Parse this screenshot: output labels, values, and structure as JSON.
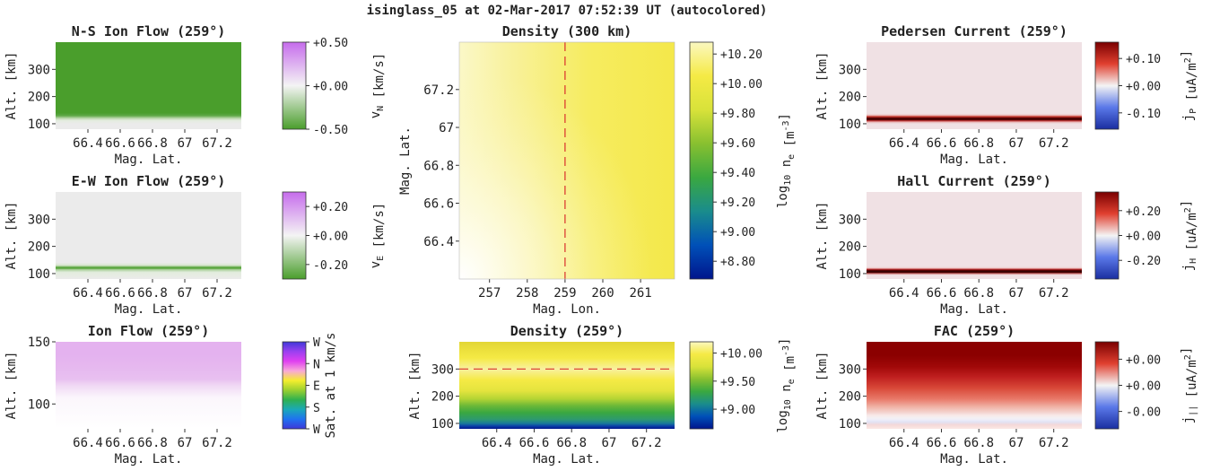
{
  "figure": {
    "title": "isinglass_05 at 02-Mar-2017 07:52:39 UT (autocolored)"
  },
  "colors": {
    "green": "#4a9e2c",
    "light_gray": "#ebebeb",
    "purple": "#c66cec",
    "pink_bg": "#f0e1e4",
    "dark_red": "#8b0000",
    "red": "#e23b2f",
    "blue": "#2435c8",
    "yellow": "#f5ea45",
    "navy": "#00158c",
    "dashed_line": "#d9302c"
  },
  "chart_data": [
    {
      "id": "ns_ion_flow",
      "type": "heatmap",
      "title": "N-S Ion Flow (259°)",
      "xlabel": "Mag. Lat.",
      "ylabel": "Alt. [km]",
      "xlim": [
        66.2,
        67.35
      ],
      "ylim": [
        80,
        400
      ],
      "xticks": [
        "66.4",
        "66.6",
        "66.8",
        "67",
        "67.2"
      ],
      "xtick_values": [
        66.4,
        66.6,
        66.8,
        67.0,
        67.2
      ],
      "yticks": [
        "100",
        "200",
        "300"
      ],
      "ytick_values": [
        100,
        200,
        300
      ],
      "profile_altitude": [
        80,
        100,
        112,
        120,
        125,
        130,
        140,
        400
      ],
      "profile_colors": [
        "#ebebeb",
        "#ebebeb",
        "#e4ecdf",
        "#bcd8ae",
        "#8cc078",
        "#5ea846",
        "#4a9e2c",
        "#4a9e2c"
      ],
      "colorbar": {
        "label": "v_N [km/s]",
        "ticks": [
          "+0.50",
          "+0.00",
          "-0.50"
        ],
        "tick_values": [
          0.5,
          0.0,
          -0.5
        ],
        "range": [
          -0.5,
          0.5
        ],
        "colors": [
          "#4a9e2c",
          "#f4f4f4",
          "#c66cec"
        ]
      }
    },
    {
      "id": "ew_ion_flow",
      "type": "heatmap",
      "title": "E-W Ion Flow (259°)",
      "xlabel": "Mag. Lat.",
      "ylabel": "Alt. [km]",
      "xlim": [
        66.2,
        67.35
      ],
      "ylim": [
        80,
        400
      ],
      "xticks": [
        "66.4",
        "66.6",
        "66.8",
        "67",
        "67.2"
      ],
      "xtick_values": [
        66.4,
        66.6,
        66.8,
        67.0,
        67.2
      ],
      "yticks": [
        "100",
        "200",
        "300"
      ],
      "ytick_values": [
        100,
        200,
        300
      ],
      "profile_altitude": [
        80,
        105,
        115,
        120,
        125,
        130,
        140,
        400
      ],
      "profile_colors": [
        "#ebebeb",
        "#e2ecdd",
        "#a8cf98",
        "#4a9e2c",
        "#7cb866",
        "#d6e6cd",
        "#ebebeb",
        "#ebebeb"
      ],
      "colorbar": {
        "label": "v_E [km/s]",
        "ticks": [
          "+0.20",
          "+0.00",
          "-0.20"
        ],
        "tick_values": [
          0.2,
          0.0,
          -0.2
        ],
        "range": [
          -0.3,
          0.3
        ],
        "colors": [
          "#4a9e2c",
          "#f4f4f4",
          "#c66cec"
        ]
      }
    },
    {
      "id": "ion_flow",
      "type": "heatmap",
      "title": "Ion Flow (259°)",
      "xlabel": "Mag. Lat.",
      "ylabel": "Alt. [km]",
      "xlim": [
        66.2,
        67.35
      ],
      "ylim": [
        80,
        150
      ],
      "xticks": [
        "66.4",
        "66.6",
        "66.8",
        "67",
        "67.2"
      ],
      "xtick_values": [
        66.4,
        66.6,
        66.8,
        67.0,
        67.2
      ],
      "yticks": [
        "100",
        "150"
      ],
      "ytick_values": [
        100,
        150
      ],
      "profile_altitude": [
        80,
        105,
        115,
        120,
        130,
        140,
        150
      ],
      "profile_colors": [
        "#ffffff",
        "#fbf6fc",
        "#f0d8f4",
        "#e8c0f0",
        "#e6b8ef",
        "#e4b2ef",
        "#e4b2ef"
      ],
      "colorbar": {
        "label": "Sat. at 1 km/s",
        "ticks": [
          "W",
          "N",
          "E",
          "S",
          "W"
        ],
        "tick_values": [
          0,
          0.25,
          0.5,
          0.75,
          1.0
        ],
        "range": [
          1,
          0
        ],
        "colors": [
          "#3f38d8",
          "#1f72f0",
          "#1aa9b8",
          "#2fb050",
          "#9ad030",
          "#f5ee2e",
          "#f8a8d8",
          "#e040f0",
          "#9a40f0",
          "#3f38d8"
        ]
      }
    },
    {
      "id": "density_300km",
      "type": "heatmap",
      "title": "Density (300 km)",
      "xlabel": "Mag. Lon.",
      "ylabel": "Mag. Lat.",
      "xlim": [
        256.2,
        261.9
      ],
      "ylim": [
        66.2,
        67.45
      ],
      "xticks": [
        "257",
        "258",
        "259",
        "260",
        "261"
      ],
      "xtick_values": [
        257,
        258,
        259,
        260,
        261
      ],
      "yticks": [
        "66.4",
        "66.6",
        "66.8",
        "67",
        "67.2"
      ],
      "ytick_values": [
        66.4,
        66.6,
        66.8,
        67.0,
        67.2
      ],
      "marker_lon": 259,
      "colorbar": {
        "label": "log10 n_e [m^-3]",
        "ticks": [
          "+10.20",
          "+10.00",
          "+9.80",
          "+9.60",
          "+9.40",
          "+9.20",
          "+9.00",
          "+8.80"
        ],
        "tick_values": [
          10.2,
          10.0,
          9.8,
          9.6,
          9.4,
          9.2,
          9.0,
          8.8
        ],
        "range": [
          8.68,
          10.28
        ],
        "colors": [
          "#00158c",
          "#0050b8",
          "#1a8c8c",
          "#3aa840",
          "#88c030",
          "#d8e23a",
          "#f5ea45",
          "#fbf8c0"
        ]
      }
    },
    {
      "id": "density_259",
      "type": "heatmap",
      "title": "Density (259°)",
      "xlabel": "Mag. Lat.",
      "ylabel": "Alt. [km]",
      "xlim": [
        66.2,
        67.35
      ],
      "ylim": [
        80,
        400
      ],
      "xticks": [
        "66.4",
        "66.6",
        "66.8",
        "67",
        "67.2"
      ],
      "xtick_values": [
        66.4,
        66.6,
        66.8,
        67.0,
        67.2
      ],
      "yticks": [
        "100",
        "200",
        "300"
      ],
      "ytick_values": [
        100,
        200,
        300
      ],
      "marker_alt": 300,
      "profile_altitude": [
        80,
        90,
        100,
        115,
        140,
        165,
        190,
        220,
        260,
        300,
        340,
        370,
        400
      ],
      "profile_colors": [
        "#00158c",
        "#0b3fa8",
        "#1a7a9a",
        "#2e9a6e",
        "#3aa840",
        "#6cb838",
        "#b4d434",
        "#e4e43e",
        "#f5ea45",
        "#f8f0a0",
        "#f5ea45",
        "#ece03c",
        "#e2d636"
      ],
      "colorbar": {
        "label": "log10 n_e [m^-3]",
        "ticks": [
          "+10.00",
          "+9.50",
          "+9.00"
        ],
        "tick_values": [
          10.0,
          9.5,
          9.0
        ],
        "range": [
          8.65,
          10.2
        ],
        "colors": [
          "#00158c",
          "#0050b8",
          "#1a8c8c",
          "#3aa840",
          "#88c030",
          "#d8e23a",
          "#f5ea45",
          "#fbf8c0"
        ]
      }
    },
    {
      "id": "pedersen_current",
      "type": "heatmap",
      "title": "Pedersen Current (259°)",
      "xlabel": "Mag. Lat.",
      "ylabel": "Alt. [km]",
      "xlim": [
        66.2,
        67.35
      ],
      "ylim": [
        80,
        400
      ],
      "xticks": [
        "66.4",
        "66.6",
        "66.8",
        "67",
        "67.2"
      ],
      "xtick_values": [
        66.4,
        66.6,
        66.8,
        67.0,
        67.2
      ],
      "yticks": [
        "100",
        "200",
        "300"
      ],
      "ytick_values": [
        100,
        200,
        300
      ],
      "profile_altitude": [
        80,
        100,
        106,
        111,
        115,
        119,
        122,
        127,
        132,
        138,
        400
      ],
      "profile_colors": [
        "#f0e1e4",
        "#f0e1e4",
        "#e8b8b8",
        "#c03030",
        "#4a0000",
        "#3a0000",
        "#7a0808",
        "#d04a40",
        "#ecc8c8",
        "#f0e1e4",
        "#f0e1e4"
      ],
      "colorbar": {
        "label": "j_P [uA/m^2]",
        "ticks": [
          "+0.10",
          "+0.00",
          "-0.10"
        ],
        "tick_values": [
          0.1,
          0.0,
          -0.1
        ],
        "range": [
          -0.16,
          0.16
        ],
        "colors": [
          "#1a2ea0",
          "#5a78e8",
          "#f4f4f4",
          "#e04030",
          "#7a0000"
        ]
      }
    },
    {
      "id": "hall_current",
      "type": "heatmap",
      "title": "Hall Current (259°)",
      "xlabel": "Mag. Lat.",
      "ylabel": "Alt. [km]",
      "xlim": [
        66.2,
        67.35
      ],
      "ylim": [
        80,
        400
      ],
      "xticks": [
        "66.4",
        "66.6",
        "66.8",
        "67",
        "67.2"
      ],
      "xtick_values": [
        66.4,
        66.6,
        66.8,
        67.0,
        67.2
      ],
      "yticks": [
        "100",
        "200",
        "300"
      ],
      "ytick_values": [
        100,
        200,
        300
      ],
      "profile_altitude": [
        80,
        95,
        100,
        104,
        108,
        112,
        116,
        120,
        126,
        400
      ],
      "profile_colors": [
        "#f0e1e4",
        "#f0e1e4",
        "#d07070",
        "#4a0000",
        "#300000",
        "#5a0000",
        "#c03030",
        "#ecc8c8",
        "#f0e1e4",
        "#f0e1e4"
      ],
      "colorbar": {
        "label": "j_H [uA/m^2]",
        "ticks": [
          "+0.20",
          "+0.00",
          "-0.20"
        ],
        "tick_values": [
          0.2,
          0.0,
          -0.2
        ],
        "range": [
          -0.35,
          0.35
        ],
        "colors": [
          "#1a2ea0",
          "#5a78e8",
          "#f4f4f4",
          "#e04030",
          "#7a0000"
        ]
      }
    },
    {
      "id": "fac",
      "type": "heatmap",
      "title": "FAC (259°)",
      "xlabel": "Mag. Lat.",
      "ylabel": "Alt. [km]",
      "xlim": [
        66.2,
        67.35
      ],
      "ylim": [
        80,
        400
      ],
      "xticks": [
        "66.4",
        "66.6",
        "66.8",
        "67",
        "67.2"
      ],
      "xtick_values": [
        66.4,
        66.6,
        66.8,
        67.0,
        67.2
      ],
      "yticks": [
        "100",
        "200",
        "300"
      ],
      "ytick_values": [
        100,
        200,
        300
      ],
      "profile_altitude": [
        80,
        95,
        105,
        112,
        120,
        130,
        140,
        160,
        190,
        230,
        270,
        310,
        350,
        400
      ],
      "profile_colors": [
        "#fbe8e4",
        "#f4d8d8",
        "#e2e2f4",
        "#ececf8",
        "#f4f0f4",
        "#f8e8e8",
        "#f4d4d0",
        "#f0b4a8",
        "#e87868",
        "#d84838",
        "#c02020",
        "#a00808",
        "#8b0000",
        "#8b0000"
      ],
      "colorbar": {
        "label": "j_|| [uA/m^2]",
        "ticks": [
          "+0.00",
          "+0.00",
          "-0.00"
        ],
        "tick_values": [
          0.003,
          0.0,
          -0.003
        ],
        "range": [
          -0.005,
          0.005
        ],
        "colors": [
          "#1a2ea0",
          "#5a78e8",
          "#f4f4f4",
          "#e04030",
          "#7a0000"
        ]
      }
    }
  ]
}
